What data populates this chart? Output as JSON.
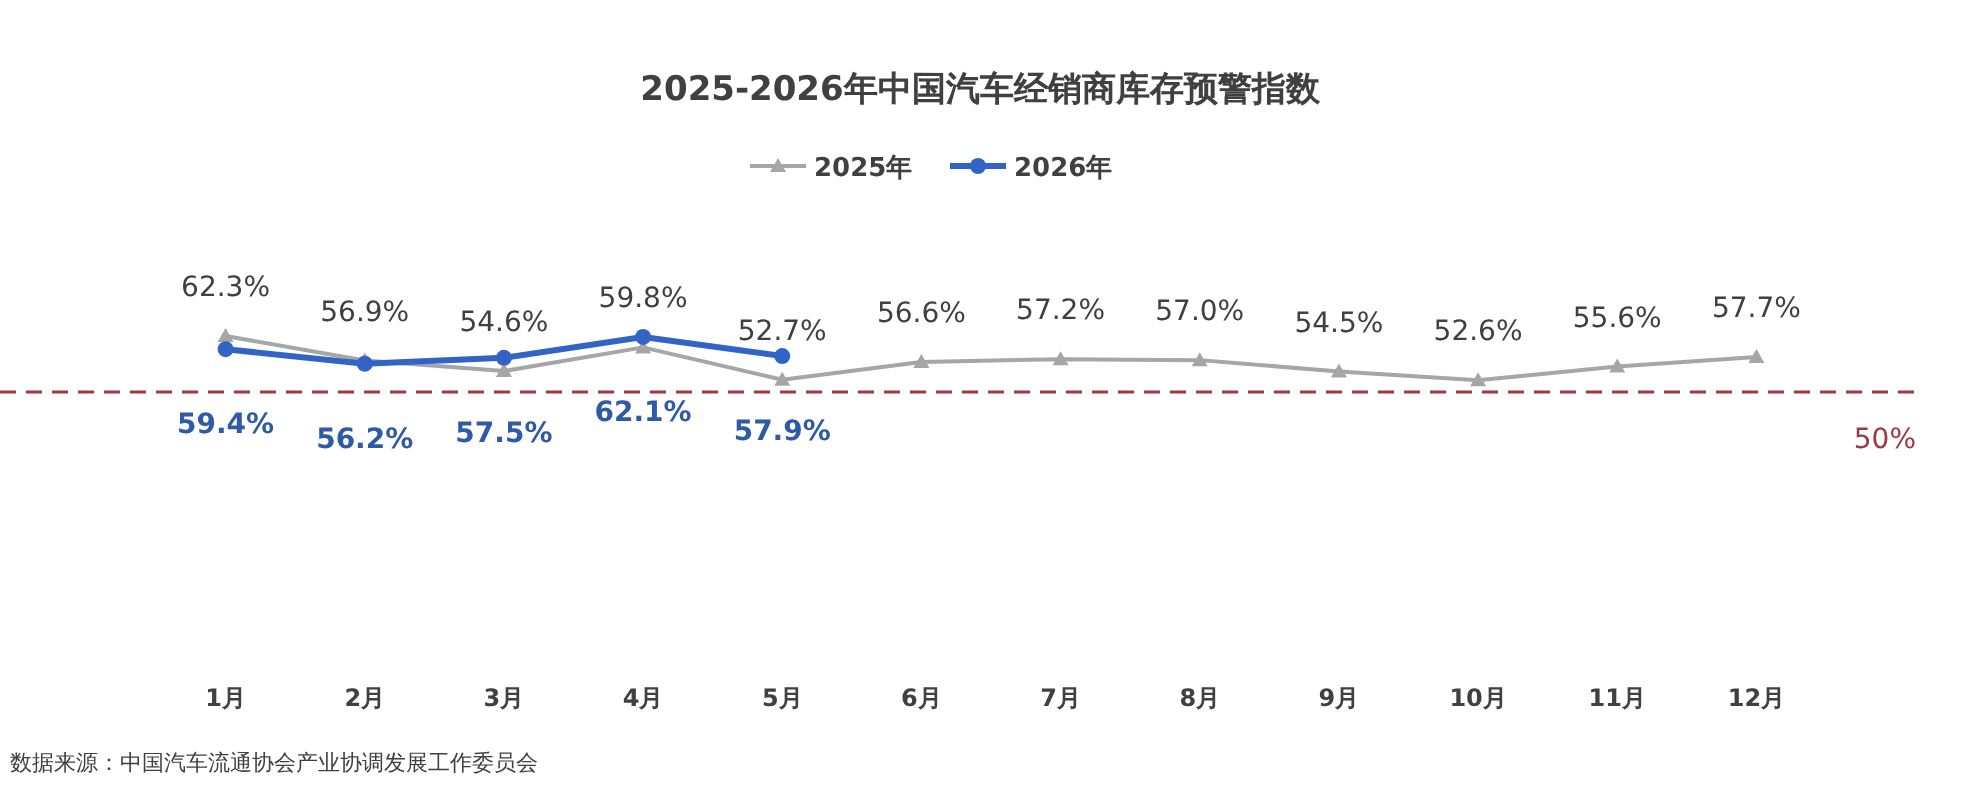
{
  "chart_data": {
    "type": "line",
    "title": "2025-2026年中国汽车经销商库存预警指数",
    "categories": [
      "1月",
      "2月",
      "3月",
      "4月",
      "5月",
      "6月",
      "7月",
      "8月",
      "9月",
      "10月",
      "11月",
      "12月"
    ],
    "series": [
      {
        "name": "2025年",
        "color": "#a6a6a6",
        "marker": "triangle",
        "values": [
          62.3,
          56.9,
          54.6,
          59.8,
          52.7,
          56.6,
          57.2,
          57.0,
          54.5,
          52.6,
          55.6,
          57.7
        ],
        "value_labels": [
          "62.3%",
          "56.9%",
          "54.6%",
          "59.8%",
          "52.7%",
          "56.6%",
          "57.2%",
          "57.0%",
          "54.5%",
          "52.6%",
          "55.6%",
          "57.7%"
        ]
      },
      {
        "name": "2026年",
        "color": "#3264c8",
        "marker": "circle",
        "values": [
          59.4,
          56.2,
          57.5,
          62.1,
          57.9,
          null,
          null,
          null,
          null,
          null,
          null,
          null
        ],
        "value_labels": [
          "59.4%",
          "56.2%",
          "57.5%",
          "62.1%",
          "57.9%",
          null,
          null,
          null,
          null,
          null,
          null,
          null
        ]
      }
    ],
    "legend": "top",
    "line_style": "solid",
    "ref_lines": [
      {
        "axis": "y",
        "value": 50,
        "label": "50%",
        "color": "#9b3a44",
        "line_style": "dashed"
      }
    ],
    "annotations": [
      "数据来源：中国汽车流通协会产业协调发展工作委员会"
    ]
  }
}
